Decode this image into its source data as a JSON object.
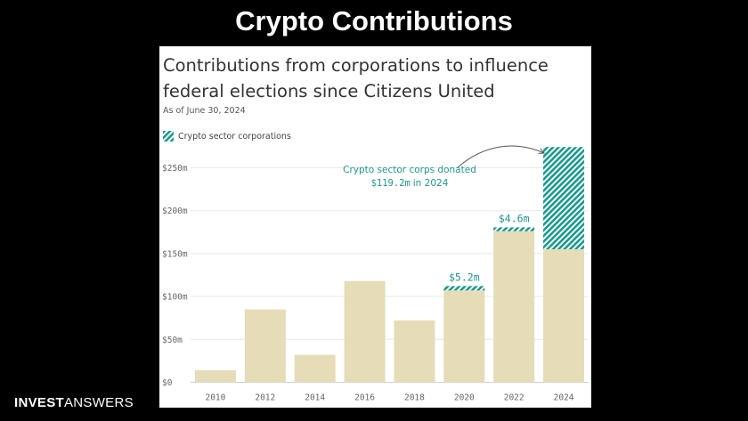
{
  "slide": {
    "title": "Crypto Contributions"
  },
  "brand": {
    "part1": "INVEST",
    "part2": "ANSWERS"
  },
  "colors": {
    "base": "#e6dcb8",
    "crypto": "#1a9a8c",
    "grid": "#e9e9e9",
    "annotation": "#1a9a8c"
  },
  "chart_data": {
    "type": "bar",
    "title": "Contributions from corporations to influence federal elections since Citizens United",
    "subtitle": "As of June 30, 2024",
    "legend": {
      "position": "top-left",
      "entries": [
        "Crypto sector corporations"
      ]
    },
    "categories": [
      "2010",
      "2012",
      "2014",
      "2016",
      "2018",
      "2020",
      "2022",
      "2024"
    ],
    "series": [
      {
        "name": "",
        "values": [
          14,
          85,
          32,
          118,
          72,
          107,
          176,
          155
        ]
      },
      {
        "name": "Crypto sector corporations",
        "values": [
          0,
          0,
          0,
          0,
          0,
          5.2,
          4.6,
          119.2
        ]
      }
    ],
    "ylim": [
      0,
      275
    ],
    "yticks": [
      0,
      50,
      100,
      150,
      200,
      250
    ],
    "ytick_labels": [
      "$0",
      "$50m",
      "$100m",
      "$150m",
      "$200m",
      "$250m"
    ],
    "grid": true,
    "annotations": {
      "bar_labels": [
        {
          "category": "2020",
          "text": "$5.2m"
        },
        {
          "category": "2022",
          "text": "$4.6m"
        }
      ],
      "callout_line1": "Crypto sector corps donated",
      "callout_amount": "$119.2m",
      "callout_year": " in 2024"
    }
  }
}
